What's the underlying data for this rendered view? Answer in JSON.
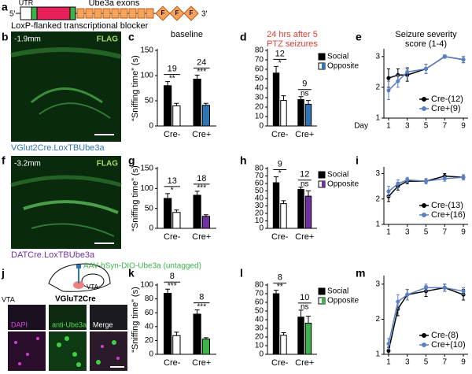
{
  "texts": {
    "a": "a",
    "b": "b",
    "c": "c",
    "d": "d",
    "e": "e",
    "f": "f",
    "g": "g",
    "h": "h",
    "i": "i",
    "j": "j",
    "k": "k",
    "l": "l",
    "m": "m",
    "five_prime": "5'",
    "three_prime": "3'",
    "utr": "UTR",
    "exons": "Ube3a exons",
    "flag_box": "F",
    "blocker": "LoxP-flanked transcriptional blocker",
    "b_depth": "-1.9mm",
    "b_flag": "FLAG",
    "b_caption": "VGlut2Cre.LoxTBUbe3a",
    "f_depth": "-3.2mm",
    "f_flag": "FLAG",
    "f_caption": "DATCre.LoxTBUbe3a",
    "virus": "AAV-hSyn-DIO-Ube3a (untagged)",
    "vta_schematic": "VTA",
    "mouse_line": "VGluT2Cre",
    "vta_image": "VTA",
    "dapi": "DAPI",
    "anti_ube3a": "anti-Ube3a",
    "merge": "Merge"
  },
  "chart_data": [
    {
      "type": "bar",
      "title": [
        "baseline"
      ],
      "ylabel": "“Sniffing time” (s)",
      "categories": [
        "Cre-",
        "Cre+"
      ],
      "ylim": [
        0,
        150
      ],
      "yticks": [
        0,
        50,
        100,
        150
      ],
      "series": [
        {
          "colors": [
            "#000000",
            "#000000"
          ],
          "values": [
            80,
            93
          ],
          "errors": [
            8,
            8
          ]
        },
        {
          "colors": [
            "#ffffff",
            "#2e75b6"
          ],
          "values": [
            40,
            41
          ],
          "errors": [
            5,
            4
          ]
        }
      ],
      "annotations": [
        {
          "n": "19",
          "sig": "**"
        },
        {
          "n": "24",
          "sig": "***"
        }
      ]
    },
    {
      "type": "bar",
      "title": [
        "24 hrs after 5",
        "PTZ seizures"
      ],
      "title_color": "#e03c31",
      "categories": [
        "Cre-",
        "Cre+"
      ],
      "ylim": [
        0,
        80
      ],
      "yticks": [
        0,
        10,
        20,
        30,
        40,
        50,
        60,
        70,
        80
      ],
      "series": [
        {
          "name": "Social",
          "colors": [
            "#000000",
            "#000000"
          ],
          "values": [
            56,
            28
          ],
          "errors": [
            7,
            3
          ]
        },
        {
          "name": "Opposite",
          "colors": [
            "#ffffff",
            "#2e75b6"
          ],
          "values": [
            27,
            23
          ],
          "errors": [
            5,
            4
          ]
        }
      ],
      "annotations": [
        {
          "n": "12",
          "sig": "*"
        },
        {
          "n": "9",
          "sig": "ns"
        }
      ],
      "legend": true
    },
    {
      "type": "line",
      "title": [
        "Seizure severity",
        "score (1-4)"
      ],
      "xlabel": "Day",
      "x": [
        1,
        2,
        3,
        5,
        7,
        9
      ],
      "xlim": [
        0.5,
        9.5
      ],
      "xticks": [
        1,
        3,
        5,
        7,
        9
      ],
      "ylim": [
        1,
        3.2
      ],
      "yticks": [
        1,
        2,
        3
      ],
      "series": [
        {
          "name": "Cre-(12)",
          "color": "#000000",
          "values": [
            2.3,
            2.4,
            2.4,
            2.6,
            3.0,
            2.9
          ],
          "errors": [
            0.3,
            0.2,
            0.2,
            0.15,
            0.05,
            0.1
          ]
        },
        {
          "name": "Cre+(9)",
          "color": "#5b7fc4",
          "values": [
            1.9,
            2.2,
            2.5,
            2.6,
            3.0,
            2.9
          ],
          "errors": [
            0.3,
            0.2,
            0.15,
            0.15,
            0.05,
            0.1
          ]
        }
      ]
    },
    {
      "type": "bar",
      "ylabel": "“Sniffing time” (s)",
      "categories": [
        "Cre-",
        "Cre+"
      ],
      "ylim": [
        0,
        150
      ],
      "yticks": [
        0,
        50,
        100,
        150
      ],
      "series": [
        {
          "colors": [
            "#000000",
            "#000000"
          ],
          "values": [
            75,
            83
          ],
          "errors": [
            12,
            10
          ]
        },
        {
          "colors": [
            "#ffffff",
            "#7030a0"
          ],
          "values": [
            40,
            30
          ],
          "errors": [
            6,
            4
          ]
        }
      ],
      "annotations": [
        {
          "n": "13",
          "sig": "*"
        },
        {
          "n": "18",
          "sig": "***"
        }
      ]
    },
    {
      "type": "bar",
      "categories": [
        "Cre-",
        "Cre+"
      ],
      "ylim": [
        0,
        80
      ],
      "yticks": [
        0,
        10,
        20,
        30,
        40,
        50,
        60,
        70,
        80
      ],
      "series": [
        {
          "name": "Social",
          "colors": [
            "#000000",
            "#000000"
          ],
          "values": [
            61,
            52
          ],
          "errors": [
            8,
            3
          ]
        },
        {
          "name": "Opposite",
          "colors": [
            "#ffffff",
            "#7030a0"
          ],
          "values": [
            33,
            43
          ],
          "errors": [
            4,
            7
          ]
        }
      ],
      "annotations": [
        {
          "n": "9",
          "sig": "*"
        },
        {
          "n": "12",
          "sig": "ns"
        }
      ],
      "legend": true
    },
    {
      "type": "line",
      "x": [
        1,
        2,
        3,
        5,
        7,
        9
      ],
      "xlim": [
        0.5,
        9.5
      ],
      "xticks": [
        1,
        3,
        5,
        7,
        9
      ],
      "ylim": [
        1,
        3.2
      ],
      "yticks": [
        1,
        2,
        3
      ],
      "series": [
        {
          "name": "Cre-(13)",
          "color": "#000000",
          "values": [
            2.1,
            2.5,
            2.7,
            2.7,
            2.9,
            2.85
          ],
          "errors": [
            0.2,
            0.15,
            0.1,
            0.1,
            0.1,
            0.1
          ]
        },
        {
          "name": "Cre+(16)",
          "color": "#5b7fc4",
          "values": [
            2.3,
            2.6,
            2.75,
            2.7,
            2.8,
            2.85
          ],
          "errors": [
            0.2,
            0.15,
            0.1,
            0.1,
            0.1,
            0.1
          ]
        }
      ]
    },
    {
      "type": "bar",
      "ylabel": "“Sniffing time” (s)",
      "categories": [
        "Cre-",
        "Cre+"
      ],
      "ylim": [
        0,
        100
      ],
      "yticks": [
        0,
        20,
        40,
        60,
        80,
        100
      ],
      "series": [
        {
          "colors": [
            "#000000",
            "#000000"
          ],
          "values": [
            88,
            58
          ],
          "errors": [
            6,
            6
          ]
        },
        {
          "colors": [
            "#ffffff",
            "#3cb44b"
          ],
          "values": [
            27,
            22
          ],
          "errors": [
            5,
            2
          ]
        }
      ],
      "annotations": [
        {
          "n": "8",
          "sig": "***"
        },
        {
          "n": "8",
          "sig": "***"
        }
      ]
    },
    {
      "type": "bar",
      "categories": [
        "Cre-",
        "Cre+"
      ],
      "ylim": [
        0,
        80
      ],
      "yticks": [
        0,
        10,
        20,
        30,
        40,
        50,
        60,
        70,
        80
      ],
      "series": [
        {
          "name": "Social",
          "colors": [
            "#000000",
            "#000000"
          ],
          "values": [
            70,
            43
          ],
          "errors": [
            4,
            8
          ]
        },
        {
          "name": "Opposite",
          "colors": [
            "#ffffff",
            "#3cb44b"
          ],
          "values": [
            22,
            36
          ],
          "errors": [
            3,
            8
          ]
        }
      ],
      "annotations": [
        {
          "n": "8",
          "sig": "**"
        },
        {
          "n": "10",
          "sig": "ns"
        }
      ],
      "legend": true
    },
    {
      "type": "line",
      "x": [
        1,
        2,
        3,
        5,
        7,
        9
      ],
      "xlim": [
        0.5,
        9.5
      ],
      "xticks": [
        1,
        3,
        5,
        7,
        9
      ],
      "ylim": [
        1,
        3.2
      ],
      "yticks": [
        1,
        2,
        3
      ],
      "series": [
        {
          "name": "Cre-(8)",
          "color": "#000000",
          "values": [
            1.1,
            2.3,
            2.7,
            2.8,
            2.9,
            2.7
          ],
          "errors": [
            0.1,
            0.2,
            0.15,
            0.15,
            0.1,
            0.15
          ]
        },
        {
          "name": "Cre+(10)",
          "color": "#5b7fc4",
          "values": [
            1.3,
            2.5,
            2.7,
            2.9,
            2.9,
            2.8
          ],
          "errors": [
            0.15,
            0.2,
            0.15,
            0.1,
            0.1,
            0.1
          ]
        }
      ]
    }
  ]
}
